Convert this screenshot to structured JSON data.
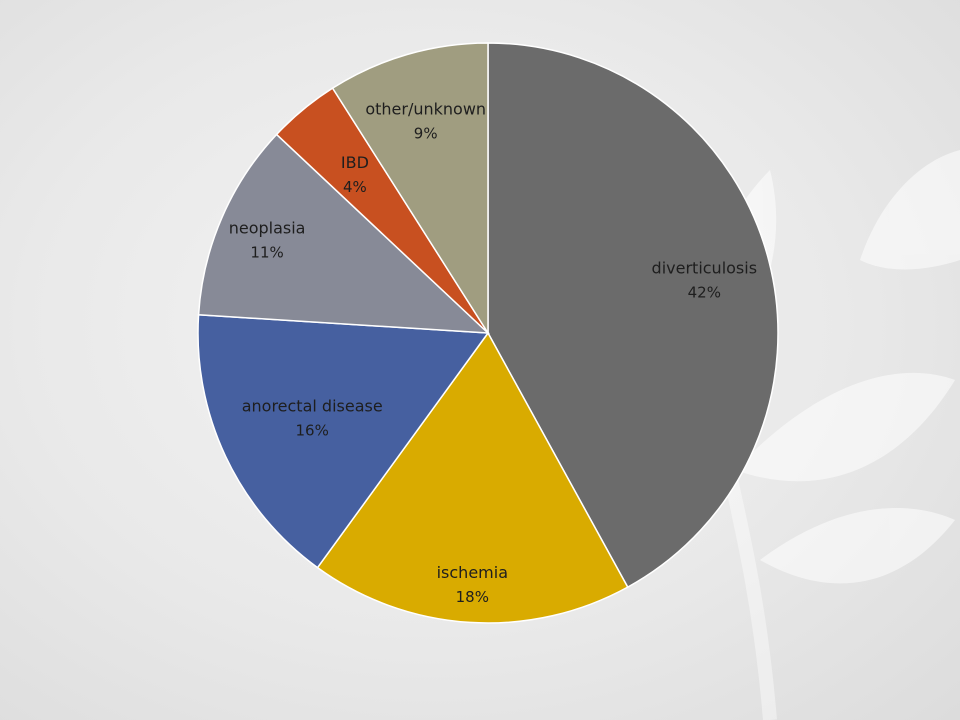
{
  "chart_data": {
    "type": "pie",
    "start_angle_deg": 0,
    "direction": "clockwise",
    "slices": [
      {
        "key": "diverticulosis",
        "label": "diverticulosis",
        "value": 42,
        "value_label": "42%",
        "color": "#6b6b6b"
      },
      {
        "key": "ischemia",
        "label": "ischemia",
        "value": 18,
        "value_label": "18%",
        "color": "#d9ab00"
      },
      {
        "key": "anorectal-disease",
        "label": "anorectal disease",
        "value": 16,
        "value_label": "16%",
        "color": "#4660a0"
      },
      {
        "key": "neoplasia",
        "label": "neoplasia",
        "value": 11,
        "value_label": "11%",
        "color": "#878a97"
      },
      {
        "key": "ibd",
        "label": "IBD",
        "value": 4,
        "value_label": "4%",
        "color": "#c85020"
      },
      {
        "key": "other-unknown",
        "label": "other/unknown",
        "value": 9,
        "value_label": "9%",
        "color": "#a09d80"
      }
    ]
  }
}
